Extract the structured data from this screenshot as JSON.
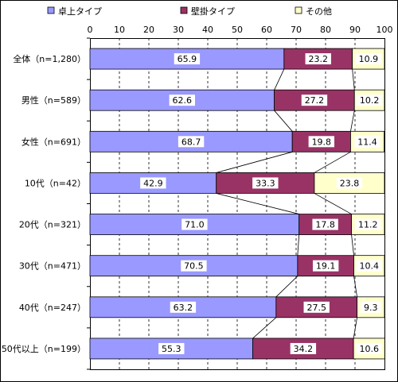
{
  "chart_data": {
    "type": "bar",
    "orientation": "horizontal",
    "stacked": true,
    "title": "",
    "xlabel": "",
    "ylabel": "",
    "xlim": [
      0,
      100
    ],
    "xticks": [
      "0",
      "10",
      "20",
      "30",
      "40",
      "50",
      "60",
      "70",
      "80",
      "90",
      "100"
    ],
    "grid": true,
    "legend_position": "top",
    "categories": [
      "全体（n=1,280）",
      "男性（n=589）",
      "女性（n=691）",
      "10代（n=42）",
      "20代（n=321）",
      "30代（n=471）",
      "40代（n=247）",
      "50代以上（n=199）"
    ],
    "series": [
      {
        "name": "卓上タイプ",
        "color": "#9999ff",
        "values": [
          65.9,
          62.6,
          68.7,
          42.9,
          71.0,
          70.5,
          63.2,
          55.3
        ],
        "labels": [
          "65.9",
          "62.6",
          "68.7",
          "42.9",
          "71.0",
          "70.5",
          "63.2",
          "55.3"
        ]
      },
      {
        "name": "壁掛タイプ",
        "color": "#993366",
        "values": [
          23.2,
          27.2,
          19.8,
          33.3,
          17.8,
          19.1,
          27.5,
          34.2
        ],
        "labels": [
          "23.2",
          "27.2",
          "19.8",
          "33.3",
          "17.8",
          "19.1",
          "27.5",
          "34.2"
        ]
      },
      {
        "name": "その他",
        "color": "#ffffcc",
        "values": [
          10.9,
          10.2,
          11.4,
          23.8,
          11.2,
          10.4,
          9.3,
          10.6
        ],
        "labels": [
          "10.9",
          "10.2",
          "11.4",
          "23.8",
          "11.2",
          "10.4",
          "9.3",
          "10.6"
        ]
      }
    ]
  }
}
